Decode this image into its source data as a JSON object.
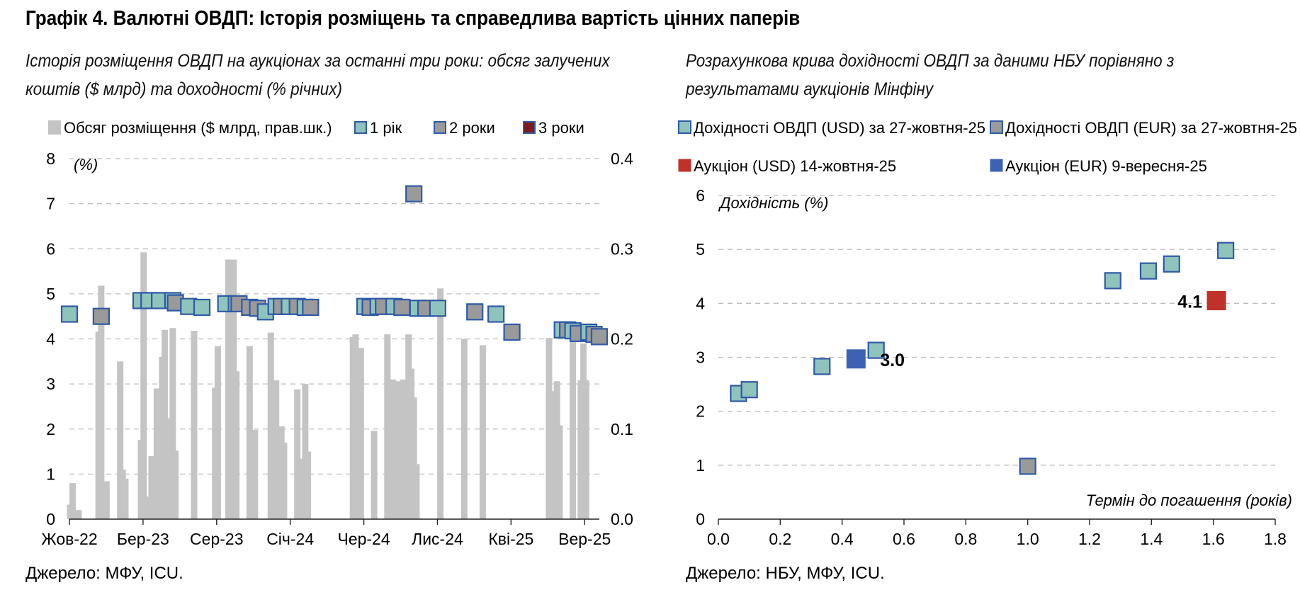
{
  "title": "Графік 4. Валютні ОВДП: Історія розміщень та справедлива вартість цінних паперів",
  "colors": {
    "volume": "#c4c4c4",
    "yield_1y": "#8fc4bd",
    "yield_2y": "#9a9a9a",
    "yield_3y": "#7a1d1d",
    "marker_border": "#2f5aa6",
    "auction_usd": "#c0312b",
    "auction_eur": "#3d62b3",
    "grid": "#bdbdbd",
    "axis": "#222222"
  },
  "chart_data": [
    {
      "type": "bar",
      "subtitle": "Історія розміщення ОВДП на аукціонах за останні три роки: обсяг залучених коштів ($ млрд) та доходності (% річних)",
      "source": "Джерело: МФУ, ICU.",
      "left_axis_label": "(%)",
      "left_yticks": [
        "0",
        "1",
        "2",
        "3",
        "4",
        "5",
        "6",
        "7",
        "8"
      ],
      "right_yticks": [
        "0.0",
        "0.1",
        "0.2",
        "0.3",
        "0.4"
      ],
      "ylim_left": [
        0,
        8
      ],
      "ylim_right": [
        0,
        0.4
      ],
      "grid": true,
      "legend_position": "top",
      "x_range": [
        0,
        36
      ],
      "xticks": [
        {
          "label": "Жов-22",
          "x": 0
        },
        {
          "label": "Бер-23",
          "x": 5
        },
        {
          "label": "Сер-23",
          "x": 10
        },
        {
          "label": "Січ-24",
          "x": 15
        },
        {
          "label": "Чер-24",
          "x": 20
        },
        {
          "label": "Лис-24",
          "x": 25
        },
        {
          "label": "Кві-25",
          "x": 30
        },
        {
          "label": "Вер-25",
          "x": 35
        }
      ],
      "legend": [
        {
          "label": "Обсяг розміщення ($ млрд, прав.шк.)",
          "key": "volume"
        },
        {
          "label": "1 рік",
          "key": "yield_1y"
        },
        {
          "label": "2 роки",
          "key": "yield_2y"
        },
        {
          "label": "3 роки",
          "key": "yield_3y"
        }
      ],
      "bars": [
        {
          "x": 0.05,
          "v": 0.016
        },
        {
          "x": 0.22,
          "v": 0.04
        },
        {
          "x": 0.62,
          "v": 0.01
        },
        {
          "x": 1.98,
          "v": 0.208
        },
        {
          "x": 2.16,
          "v": 0.259
        },
        {
          "x": 2.52,
          "v": 0.042
        },
        {
          "x": 3.45,
          "v": 0.175
        },
        {
          "x": 3.62,
          "v": 0.055
        },
        {
          "x": 3.8,
          "v": 0.045
        },
        {
          "x": 4.86,
          "v": 0.088
        },
        {
          "x": 5.04,
          "v": 0.296
        },
        {
          "x": 5.4,
          "v": 0.025
        },
        {
          "x": 5.58,
          "v": 0.07
        },
        {
          "x": 5.94,
          "v": 0.145
        },
        {
          "x": 6.3,
          "v": 0.18
        },
        {
          "x": 6.48,
          "v": 0.21
        },
        {
          "x": 6.66,
          "v": 0.112
        },
        {
          "x": 7.02,
          "v": 0.212
        },
        {
          "x": 7.2,
          "v": 0.076
        },
        {
          "x": 8.47,
          "v": 0.209
        },
        {
          "x": 9.9,
          "v": 0.146
        },
        {
          "x": 10.08,
          "v": 0.192
        },
        {
          "x": 10.8,
          "v": 0.288
        },
        {
          "x": 10.98,
          "v": 0.262
        },
        {
          "x": 11.16,
          "v": 0.288
        },
        {
          "x": 11.34,
          "v": 0.164
        },
        {
          "x": 12.24,
          "v": 0.192
        },
        {
          "x": 12.6,
          "v": 0.099
        },
        {
          "x": 13.68,
          "v": 0.207
        },
        {
          "x": 14.04,
          "v": 0.154
        },
        {
          "x": 14.4,
          "v": 0.103
        },
        {
          "x": 14.58,
          "v": 0.085
        },
        {
          "x": 15.48,
          "v": 0.144
        },
        {
          "x": 15.66,
          "v": 0.067
        },
        {
          "x": 16.02,
          "v": 0.15
        },
        {
          "x": 16.2,
          "v": 0.075
        },
        {
          "x": 19.26,
          "v": 0.202
        },
        {
          "x": 19.44,
          "v": 0.205
        },
        {
          "x": 19.8,
          "v": 0.19
        },
        {
          "x": 20.7,
          "v": 0.098
        },
        {
          "x": 21.6,
          "v": 0.205
        },
        {
          "x": 21.96,
          "v": 0.155
        },
        {
          "x": 22.14,
          "v": 0.153
        },
        {
          "x": 22.32,
          "v": 0.153
        },
        {
          "x": 22.68,
          "v": 0.155
        },
        {
          "x": 23.04,
          "v": 0.205
        },
        {
          "x": 23.22,
          "v": 0.167
        },
        {
          "x": 23.4,
          "v": 0.135
        },
        {
          "x": 23.58,
          "v": 0.061
        },
        {
          "x": 25.2,
          "v": 0.256
        },
        {
          "x": 26.82,
          "v": 0.2
        },
        {
          "x": 28.08,
          "v": 0.193
        },
        {
          "x": 32.58,
          "v": 0.201
        },
        {
          "x": 32.76,
          "v": 0.142
        },
        {
          "x": 33.12,
          "v": 0.153
        },
        {
          "x": 33.3,
          "v": 0.104
        },
        {
          "x": 34.2,
          "v": 0.206
        },
        {
          "x": 34.74,
          "v": 0.154
        },
        {
          "x": 34.92,
          "v": 0.195
        },
        {
          "x": 35.1,
          "v": 0.154
        }
      ],
      "yields": [
        {
          "x": 0.0,
          "y": 4.55,
          "tenor": "1y"
        },
        {
          "x": 2.16,
          "y": 4.5,
          "tenor": "2y"
        },
        {
          "x": 4.86,
          "y": 4.85,
          "tenor": "1y"
        },
        {
          "x": 5.4,
          "y": 4.85,
          "tenor": "1y"
        },
        {
          "x": 6.12,
          "y": 4.85,
          "tenor": "1y"
        },
        {
          "x": 7.02,
          "y": 4.85,
          "tenor": "1y"
        },
        {
          "x": 7.2,
          "y": 4.8,
          "tenor": "2y"
        },
        {
          "x": 8.1,
          "y": 4.72,
          "tenor": "1y"
        },
        {
          "x": 9.0,
          "y": 4.7,
          "tenor": "1y"
        },
        {
          "x": 10.62,
          "y": 4.78,
          "tenor": "1y"
        },
        {
          "x": 11.34,
          "y": 4.78,
          "tenor": "1y"
        },
        {
          "x": 11.52,
          "y": 4.78,
          "tenor": "2y"
        },
        {
          "x": 12.24,
          "y": 4.7,
          "tenor": "2y"
        },
        {
          "x": 12.78,
          "y": 4.68,
          "tenor": "2y"
        },
        {
          "x": 13.32,
          "y": 4.6,
          "tenor": "1y"
        },
        {
          "x": 14.04,
          "y": 4.72,
          "tenor": "1y"
        },
        {
          "x": 14.4,
          "y": 4.72,
          "tenor": "2y"
        },
        {
          "x": 14.94,
          "y": 4.72,
          "tenor": "1y"
        },
        {
          "x": 15.48,
          "y": 4.72,
          "tenor": "2y"
        },
        {
          "x": 16.02,
          "y": 4.7,
          "tenor": "1y"
        },
        {
          "x": 16.38,
          "y": 4.7,
          "tenor": "2y"
        },
        {
          "x": 20.07,
          "y": 4.72,
          "tenor": "1y"
        },
        {
          "x": 20.43,
          "y": 4.7,
          "tenor": "2y"
        },
        {
          "x": 20.97,
          "y": 4.72,
          "tenor": "1y"
        },
        {
          "x": 21.33,
          "y": 4.72,
          "tenor": "2y"
        },
        {
          "x": 22.05,
          "y": 4.72,
          "tenor": "1y"
        },
        {
          "x": 22.59,
          "y": 4.7,
          "tenor": "2y"
        },
        {
          "x": 23.4,
          "y": 7.22,
          "tenor": "2y"
        },
        {
          "x": 23.67,
          "y": 4.68,
          "tenor": "1y"
        },
        {
          "x": 24.21,
          "y": 4.68,
          "tenor": "2y"
        },
        {
          "x": 25.02,
          "y": 4.68,
          "tenor": "1y"
        },
        {
          "x": 27.54,
          "y": 4.6,
          "tenor": "2y"
        },
        {
          "x": 28.98,
          "y": 4.55,
          "tenor": "1y"
        },
        {
          "x": 30.06,
          "y": 4.15,
          "tenor": "2y"
        },
        {
          "x": 33.48,
          "y": 4.2,
          "tenor": "1y"
        },
        {
          "x": 33.84,
          "y": 4.2,
          "tenor": "2y"
        },
        {
          "x": 34.2,
          "y": 4.18,
          "tenor": "1y"
        },
        {
          "x": 34.56,
          "y": 4.12,
          "tenor": "2y"
        },
        {
          "x": 35.28,
          "y": 4.15,
          "tenor": "1y"
        },
        {
          "x": 35.64,
          "y": 4.1,
          "tenor": "2y"
        },
        {
          "x": 36.0,
          "y": 4.05,
          "tenor": "2y"
        }
      ]
    },
    {
      "type": "scatter",
      "subtitle": "Розрахункова крива дохідності ОВДП за даними НБУ порівняно з результатами аукціонів Мінфіну",
      "source": "Джерело: НБУ, МФУ, ICU.",
      "ylabel": "Дохідність (%)",
      "xlabel": "Термін до погашення (років)",
      "xlim": [
        0,
        1.8
      ],
      "ylim": [
        0,
        6
      ],
      "xticks": [
        "0.0",
        "0.2",
        "0.4",
        "0.6",
        "0.8",
        "1.0",
        "1.2",
        "1.4",
        "1.6",
        "1.8"
      ],
      "yticks": [
        "0",
        "1",
        "2",
        "3",
        "4",
        "5",
        "6"
      ],
      "grid": true,
      "legend_position": "top",
      "series": [
        {
          "name": "Дохідності ОВДП (USD) за 27-жовтня-25",
          "key": "usd_curve",
          "points": [
            {
              "x": 0.065,
              "y": 2.33
            },
            {
              "x": 0.1,
              "y": 2.4
            },
            {
              "x": 0.335,
              "y": 2.83
            },
            {
              "x": 0.51,
              "y": 3.13
            },
            {
              "x": 1.275,
              "y": 4.42
            },
            {
              "x": 1.39,
              "y": 4.6
            },
            {
              "x": 1.465,
              "y": 4.73
            },
            {
              "x": 1.64,
              "y": 4.98
            }
          ]
        },
        {
          "name": "Дохідності ОВДП (EUR) за 27-жовтня-25",
          "key": "eur_curve",
          "points": [
            {
              "x": 1.0,
              "y": 0.98
            }
          ]
        },
        {
          "name": "Аукціон (USD) 14-жовтня-25",
          "key": "auction_usd",
          "points": [
            {
              "x": 1.61,
              "y": 4.05,
              "label": "4.1"
            }
          ]
        },
        {
          "name": "Аукціон (EUR) 9-вересня-25",
          "key": "auction_eur",
          "points": [
            {
              "x": 0.445,
              "y": 2.97,
              "label": "3.0"
            }
          ]
        }
      ]
    }
  ]
}
